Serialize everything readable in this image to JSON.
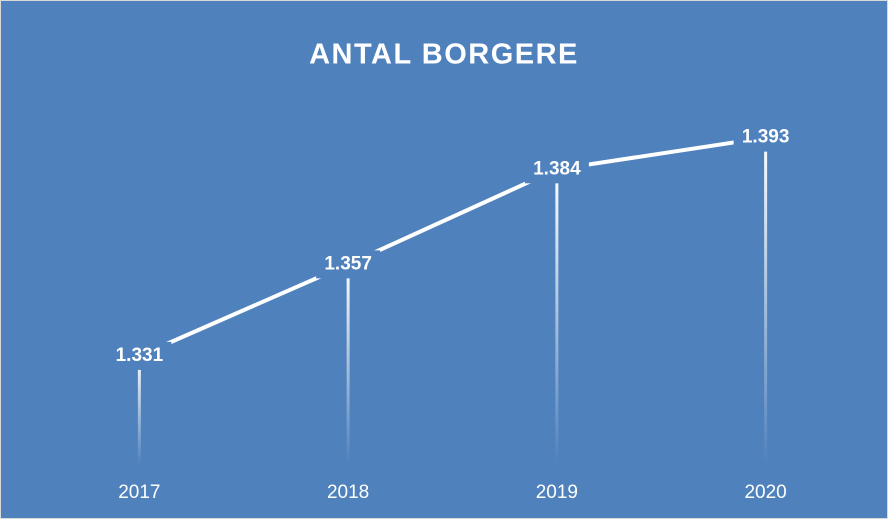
{
  "chart_data": {
    "type": "line",
    "title": "ANTAL BORGERE",
    "categories": [
      "2017",
      "2018",
      "2019",
      "2020"
    ],
    "values": [
      1331,
      1357,
      1384,
      1393
    ],
    "value_labels": [
      "1.331",
      "1.357",
      "1.384",
      "1.393"
    ],
    "color": "#ffffff",
    "background": "#4f81bd",
    "ylim": [
      1300,
      1400
    ]
  }
}
